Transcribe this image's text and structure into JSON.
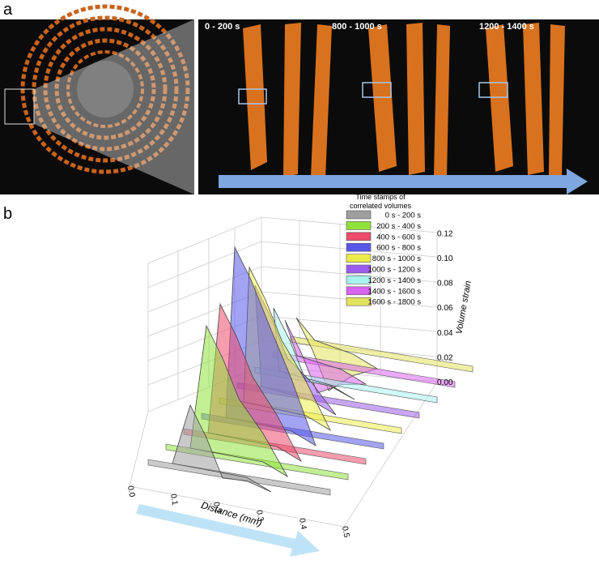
{
  "panel_a": {
    "label": "a",
    "time_labels": [
      "0 - 200 s",
      "800 - 1000 s",
      "1200 - 1400 s"
    ]
  },
  "panel_b": {
    "label": "b",
    "legend_title": [
      "Time stamps of",
      "correlated volumes"
    ],
    "legend": [
      {
        "label": "0 s - 200 s",
        "color": "#9e9e9e"
      },
      {
        "label": "200 s - 400 s",
        "color": "#8fe13c"
      },
      {
        "label": "400 s - 600 s",
        "color": "#ec4b6c"
      },
      {
        "label": "600 s - 800 s",
        "color": "#5757ea"
      },
      {
        "label": "800 s - 1000 s",
        "color": "#ecec4a"
      },
      {
        "label": "1000 s - 1200 s",
        "color": "#9b5ceb"
      },
      {
        "label": "1200 s - 1400 s",
        "color": "#a8f2ee"
      },
      {
        "label": "1400 s - 1600 s",
        "color": "#d863f0"
      },
      {
        "label": "1600 s - 1800 s",
        "color": "#e2e25c"
      }
    ],
    "z_axis": {
      "label": "Volume strain",
      "ticks": [
        "0.00",
        "0.02",
        "0.04",
        "0.06",
        "0.08",
        "0.10",
        "0.12"
      ]
    },
    "x_axis": {
      "label": "Distance (mm)",
      "ticks": [
        "0.0",
        "0.1",
        "0.2",
        "0.3",
        "0.4",
        "0.5"
      ]
    }
  }
}
